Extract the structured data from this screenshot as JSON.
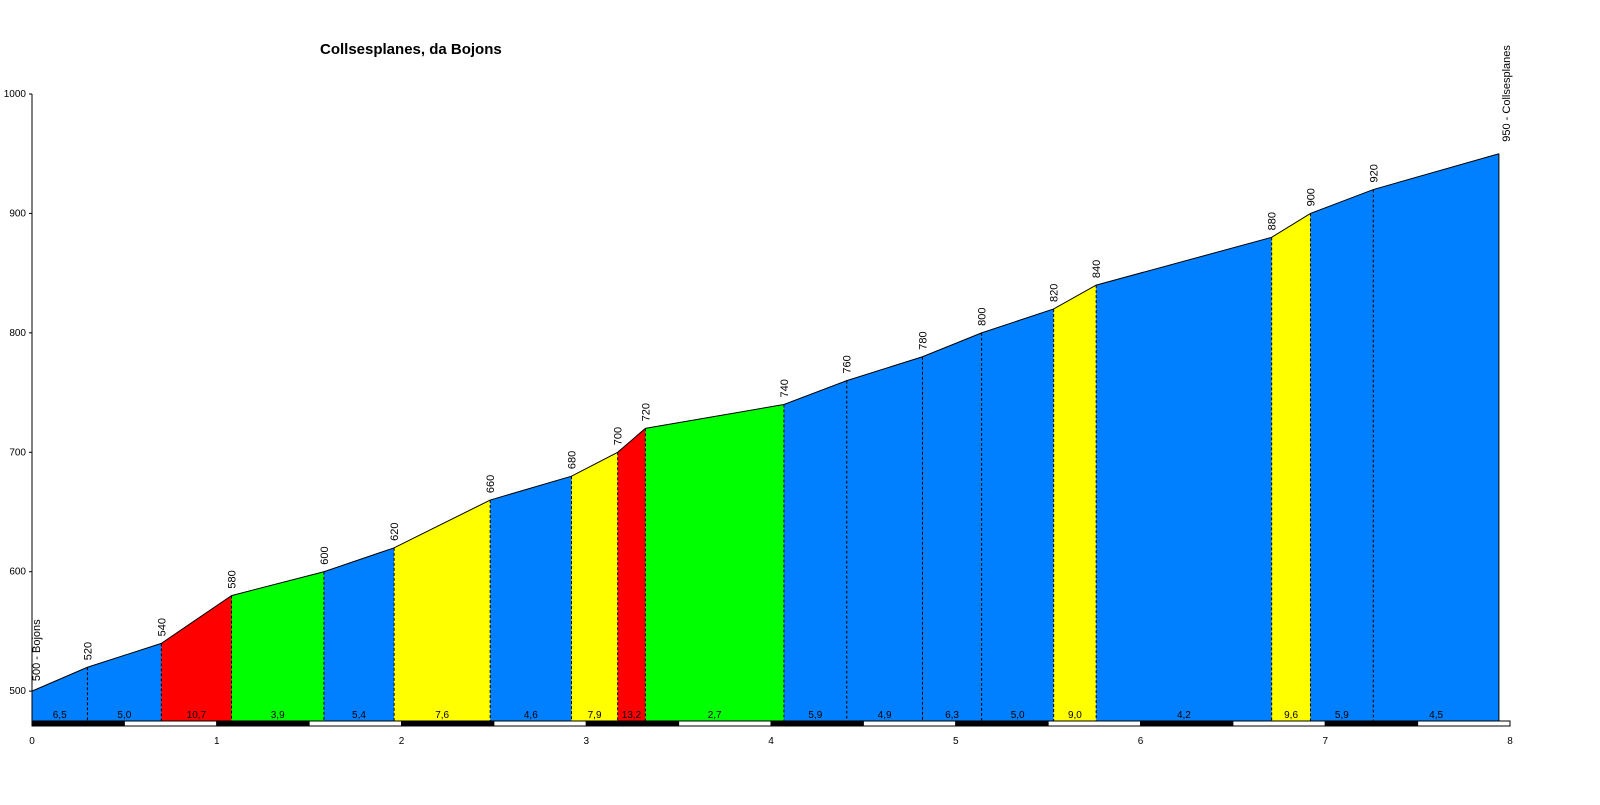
{
  "chart_data": {
    "type": "area",
    "title": "Collsesplanes, da Bojons",
    "xlabel": "",
    "ylabel": "",
    "xlim": [
      0,
      8
    ],
    "ylim": [
      475,
      1000
    ],
    "x_ticks": [
      "0",
      "1",
      "2",
      "3",
      "4",
      "5",
      "6",
      "7",
      "8"
    ],
    "y_ticks": [
      "1000",
      "900",
      "800",
      "700",
      "600",
      "500"
    ],
    "start_label": "500 - Bojons",
    "end_label": "950 - Collsesplanes",
    "points": [
      {
        "x": 0.0,
        "y": 500,
        "label": ""
      },
      {
        "x": 0.3,
        "y": 520,
        "label": "520"
      },
      {
        "x": 0.7,
        "y": 540,
        "label": "540"
      },
      {
        "x": 1.08,
        "y": 580,
        "label": "580"
      },
      {
        "x": 1.58,
        "y": 600,
        "label": "600"
      },
      {
        "x": 1.96,
        "y": 620,
        "label": "620"
      },
      {
        "x": 2.48,
        "y": 660,
        "label": "660"
      },
      {
        "x": 2.92,
        "y": 680,
        "label": "680"
      },
      {
        "x": 3.17,
        "y": 700,
        "label": "700"
      },
      {
        "x": 3.32,
        "y": 720,
        "label": "720"
      },
      {
        "x": 4.07,
        "y": 740,
        "label": "740"
      },
      {
        "x": 4.41,
        "y": 760,
        "label": "760"
      },
      {
        "x": 4.82,
        "y": 780,
        "label": "780"
      },
      {
        "x": 5.14,
        "y": 800,
        "label": "800"
      },
      {
        "x": 5.53,
        "y": 820,
        "label": "820"
      },
      {
        "x": 5.76,
        "y": 840,
        "label": "840"
      },
      {
        "x": 6.71,
        "y": 880,
        "label": "880"
      },
      {
        "x": 6.92,
        "y": 900,
        "label": "900"
      },
      {
        "x": 7.26,
        "y": 920,
        "label": "920"
      },
      {
        "x": 7.94,
        "y": 950,
        "label": ""
      }
    ],
    "segments": [
      {
        "gradient": "6,5",
        "color": "#0080ff"
      },
      {
        "gradient": "5,0",
        "color": "#0080ff"
      },
      {
        "gradient": "10,7",
        "color": "#ff0000"
      },
      {
        "gradient": "3,9",
        "color": "#00ff00"
      },
      {
        "gradient": "5,4",
        "color": "#0080ff"
      },
      {
        "gradient": "7,6",
        "color": "#ffff00"
      },
      {
        "gradient": "4,6",
        "color": "#0080ff"
      },
      {
        "gradient": "7,9",
        "color": "#ffff00"
      },
      {
        "gradient": "13,2",
        "color": "#ff0000"
      },
      {
        "gradient": "2,7",
        "color": "#00ff00"
      },
      {
        "gradient": "5,9",
        "color": "#0080ff"
      },
      {
        "gradient": "4,9",
        "color": "#0080ff"
      },
      {
        "gradient": "6,3",
        "color": "#0080ff"
      },
      {
        "gradient": "5,0",
        "color": "#0080ff"
      },
      {
        "gradient": "9,0",
        "color": "#ffff00"
      },
      {
        "gradient": "4,2",
        "color": "#0080ff"
      },
      {
        "gradient": "9,6",
        "color": "#ffff00"
      },
      {
        "gradient": "5,9",
        "color": "#0080ff"
      },
      {
        "gradient": "4,5",
        "color": "#0080ff"
      }
    ]
  }
}
